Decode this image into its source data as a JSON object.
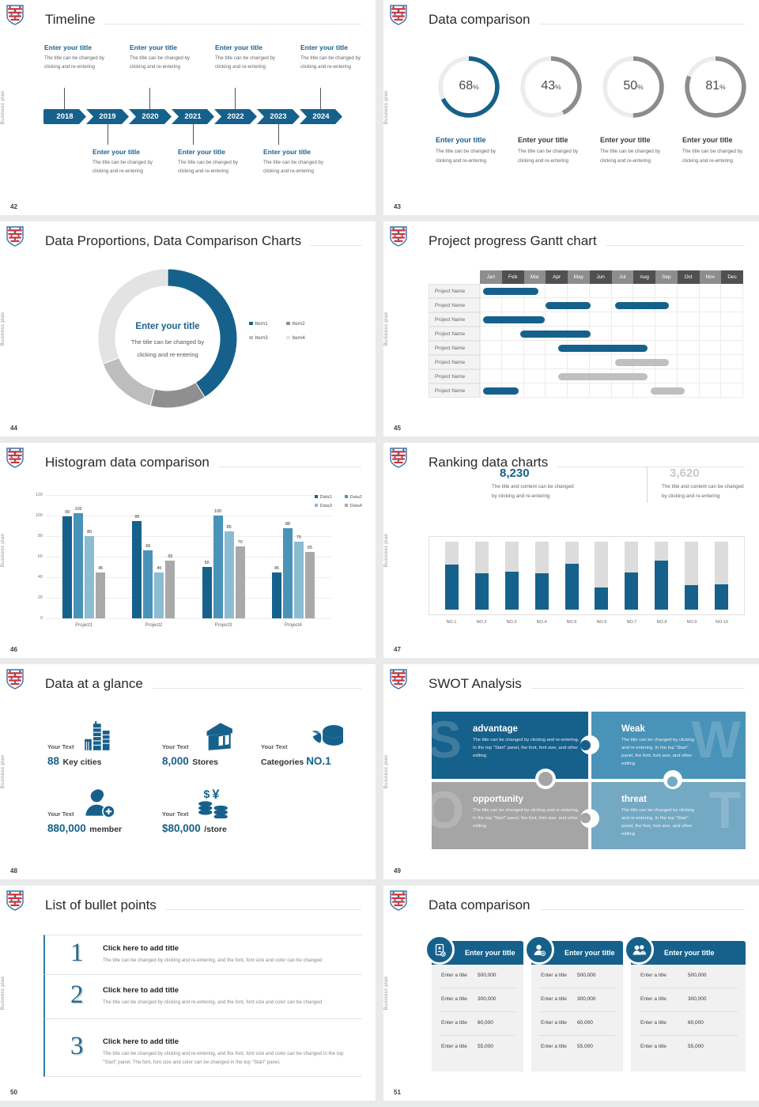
{
  "common": {
    "side_label": "Business plan",
    "logo": "thuringia-crest-icon",
    "colors": {
      "primary": "#16618c",
      "mid_blue": "#4a93b8",
      "light_blue": "#7ab3c9",
      "swot_t": "#74a9c4",
      "gray": "#a6a6a6",
      "value_gray": "#c9c9c9"
    }
  },
  "slides": [
    {
      "id": "42",
      "title": "Timeline",
      "type": "timeline",
      "years": [
        "2018",
        "2019",
        "2020",
        "2021",
        "2022",
        "2023",
        "2024"
      ],
      "top_year_indexes": [
        0,
        2,
        4,
        6
      ],
      "bottom_year_indexes": [
        1,
        3,
        5
      ],
      "item_title": "Enter your title",
      "item_body_lines": [
        "The title can be changed by",
        "clicking and re-entering"
      ]
    },
    {
      "id": "43",
      "title": "Data comparison",
      "type": "donut-stats",
      "chart_data": {
        "type": "donut-multiples",
        "values": [
          68,
          43,
          50,
          81
        ],
        "unit": "%",
        "highlight_index": 0,
        "highlight_color": "#16618c",
        "other_color": "#8c8c8c",
        "track_color": "#ececec"
      },
      "item_title": "Enter your title",
      "item_body_lines": [
        "The title can be changed by",
        "clicking and re-entering"
      ]
    },
    {
      "id": "44",
      "title": "Data Proportions, Data Comparison Charts",
      "type": "donut",
      "chart_data": {
        "type": "pie",
        "labels": [
          "Item1",
          "Item2",
          "Item3",
          "Item4"
        ],
        "values": [
          41,
          13,
          15,
          31
        ],
        "colors": [
          "#16618c",
          "#8f8f8f",
          "#bdbdbd",
          "#e3e3e3"
        ],
        "legend_position": "right"
      },
      "center_title": "Enter your title",
      "center_body_lines": [
        "The title can be changed by",
        "clicking and re-entering"
      ]
    },
    {
      "id": "45",
      "title": "Project progress Gantt chart",
      "type": "gantt",
      "chart_data": {
        "type": "gantt",
        "months": [
          "Jan",
          "Feb",
          "Mar",
          "Apr",
          "May",
          "Jun",
          "Jul",
          "Aug",
          "Sep",
          "Oct",
          "Nov",
          "Dec"
        ],
        "rows": [
          {
            "label": "Project Name",
            "bars": [
              {
                "start": 0.15,
                "end": 2.65,
                "c": "p"
              }
            ]
          },
          {
            "label": "Project Name",
            "bars": [
              {
                "start": 3.0,
                "end": 5.05,
                "c": "p"
              },
              {
                "start": 6.15,
                "end": 8.6,
                "c": "p"
              }
            ]
          },
          {
            "label": "Project Name",
            "bars": [
              {
                "start": 0.15,
                "end": 2.95,
                "c": "p"
              }
            ]
          },
          {
            "label": "Project Name",
            "bars": [
              {
                "start": 1.85,
                "end": 5.05,
                "c": "p"
              }
            ]
          },
          {
            "label": "Project Name",
            "bars": [
              {
                "start": 3.55,
                "end": 7.65,
                "c": "p"
              }
            ]
          },
          {
            "label": "Project Name",
            "bars": [
              {
                "start": 6.15,
                "end": 8.6,
                "c": "g"
              }
            ]
          },
          {
            "label": "Project Name",
            "bars": [
              {
                "start": 3.55,
                "end": 7.65,
                "c": "g"
              }
            ]
          },
          {
            "label": "Project Name",
            "bars": [
              {
                "start": 0.15,
                "end": 1.75,
                "c": "p"
              },
              {
                "start": 7.8,
                "end": 9.35,
                "c": "g"
              }
            ]
          }
        ],
        "bar_colors": {
          "p": "#16618c",
          "g": "#bfbfbf"
        }
      }
    },
    {
      "id": "46",
      "title": "Histogram data comparison",
      "type": "histogram",
      "chart_data": {
        "type": "bar",
        "categories": [
          "Project1",
          "Project2",
          "Project3",
          "Project4"
        ],
        "series": [
          {
            "name": "Data1",
            "color": "#16618c",
            "values": [
              99,
              95,
              50,
              45
            ]
          },
          {
            "name": "Data2",
            "color": "#4a93b8",
            "values": [
              102,
              66,
              100,
              88
            ]
          },
          {
            "name": "Data3",
            "color": "#8bbcd1",
            "values": [
              80,
              45,
              85,
              75
            ]
          },
          {
            "name": "Data4",
            "color": "#a9a9a9",
            "values": [
              45,
              56,
              70,
              65
            ]
          }
        ],
        "ylim": [
          0,
          120
        ],
        "yticks": [
          0,
          20,
          40,
          60,
          80,
          100,
          120
        ],
        "grid": true,
        "legend_position": "top-right",
        "data_labels": true
      }
    },
    {
      "id": "47",
      "title": "Ranking data charts",
      "type": "ranking",
      "stats": [
        {
          "value": "8,230",
          "color": "#16618c",
          "lines": [
            "The title and content can be changed",
            "by clicking and re-entering"
          ]
        },
        {
          "value": "3,620",
          "color": "#c9c9c9",
          "lines": [
            "The title and content can be changed",
            "by clicking and re-entering"
          ]
        }
      ],
      "chart_data": {
        "type": "bar",
        "categories": [
          "NO.1",
          "NO.2",
          "NO.3",
          "NO.4",
          "NO.5",
          "NO.6",
          "NO.7",
          "NO.8",
          "NO.9",
          "NO.10"
        ],
        "values": [
          66,
          53,
          56,
          54,
          68,
          32,
          55,
          72,
          36,
          37
        ],
        "max": 100,
        "fill_color": "#16618c",
        "track_color": "#dcdcdc"
      }
    },
    {
      "id": "48",
      "title": "Data at a glance",
      "type": "stats-icons",
      "items": [
        {
          "icon": "city-icon",
          "label": "Your Text",
          "value": "88",
          "unit": "Key cities"
        },
        {
          "icon": "store-icon",
          "label": "Your Text",
          "value": "8,000",
          "unit": "Stores"
        },
        {
          "icon": "pie-icon",
          "label": "Your Text",
          "prefix": "Categories",
          "value": "NO.1"
        },
        {
          "icon": "member-icon",
          "label": "Your Text",
          "value": "880,000",
          "unit": "member"
        },
        {
          "icon": "money-icon",
          "label": "Your Text",
          "value": "$80,000",
          "unit": "/store"
        }
      ]
    },
    {
      "id": "49",
      "title": "SWOT Analysis",
      "type": "swot",
      "quadrants": [
        {
          "letter": "S",
          "word": "advantage",
          "color": "#16618c",
          "body": "The title can be changed by clicking and re-entering. In the top \"Start\" panel, the font, font size, and other editing"
        },
        {
          "letter": "W",
          "word": "Weak",
          "color": "#4a93b8",
          "body": "The title can be changed by clicking and re-entering. In the top \"Start\" panel, the font, font size, and other editing"
        },
        {
          "letter": "O",
          "word": "opportunity",
          "color": "#a5a5a5",
          "body": "The title can be changed by clicking and re-entering. In the top \"Start\" panel, the font, font size, and other editing"
        },
        {
          "letter": "T",
          "word": "threat",
          "color": "#74a9c4",
          "body": "The title can be changed by clicking and re-entering. In the top \"Start\" panel, the font, font size, and other editing"
        }
      ]
    },
    {
      "id": "50",
      "title": "List of bullet points",
      "type": "bullets",
      "items": [
        {
          "num": "1",
          "title": "Click here to add title",
          "body": "The title can be changed by clicking and re-entering, and the font, font size and color can be changed"
        },
        {
          "num": "2",
          "title": "Click here to add title",
          "body": "The title can be changed by clicking and re-entering, and the font, font size and color can be changed"
        },
        {
          "num": "3",
          "title": "Click here to add title",
          "body": "The title can be changed by clicking and re-entering, and the font, font size and color can be changed in the top \"Start\" panel. The font, font size and color can be changed in the top \"Start\" panel."
        }
      ]
    },
    {
      "id": "51",
      "title": "Data comparison",
      "type": "cards",
      "cards": [
        {
          "icon": "id-card-icon",
          "title": "Enter your title",
          "rows": [
            [
              "Enter a title",
              "500,000"
            ],
            [
              "Enter a title",
              "300,000"
            ],
            [
              "Enter a title",
              "60,000"
            ],
            [
              "Enter a title",
              "55,000"
            ]
          ]
        },
        {
          "icon": "person-plus-icon",
          "title": "Enter your title",
          "rows": [
            [
              "Enter a title",
              "500,000"
            ],
            [
              "Enter a title",
              "300,000"
            ],
            [
              "Enter a title",
              "60,000"
            ],
            [
              "Enter a title",
              "55,000"
            ]
          ]
        },
        {
          "icon": "people-icon",
          "title": "Enter your title",
          "rows": [
            [
              "Enter a title",
              "500,000"
            ],
            [
              "Enter a title",
              "300,000"
            ],
            [
              "Enter a title",
              "60,000"
            ],
            [
              "Enter a title",
              "55,000"
            ]
          ]
        }
      ]
    }
  ]
}
